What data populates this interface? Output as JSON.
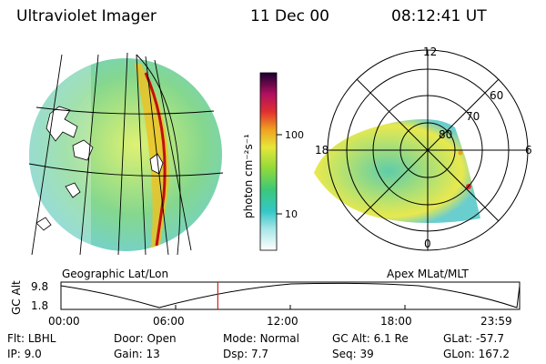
{
  "header": {
    "instrument": "Ultraviolet Imager",
    "date": "11 Dec 00",
    "time": "08:12:41 UT"
  },
  "colorbar": {
    "label": "photon cm⁻²s⁻¹",
    "ticks": [
      "100",
      "10"
    ]
  },
  "geo_panel": {
    "caption": "Geographic Lat/Lon"
  },
  "polar_panel": {
    "caption": "Apex MLat/MLT",
    "mlt_labels": [
      "12",
      "18",
      "6",
      "0"
    ],
    "mlat_labels": [
      "60",
      "70",
      "80"
    ]
  },
  "timeline": {
    "ylabel": "GC Alt",
    "yticks": [
      "9.8",
      "1.8"
    ],
    "xticks": [
      "00:00",
      "06:00",
      "12:00",
      "18:00",
      "23:59"
    ],
    "marker_fraction": 0.342
  },
  "footer": {
    "row1": [
      {
        "label": "Flt:",
        "value": "LBHL"
      },
      {
        "label": "Door:",
        "value": "Open"
      },
      {
        "label": "Mode:",
        "value": "Normal"
      },
      {
        "label": "GC Alt:",
        "value": "6.1 Re"
      },
      {
        "label": "GLat:",
        "value": "-57.7"
      }
    ],
    "row2": [
      {
        "label": "IP:",
        "value": "9.0"
      },
      {
        "label": "Gain:",
        "value": "13"
      },
      {
        "label": "Dsp:",
        "value": "7.7"
      },
      {
        "label": "Seq:",
        "value": "39"
      },
      {
        "label": "GLon:",
        "value": "167.2"
      }
    ]
  }
}
